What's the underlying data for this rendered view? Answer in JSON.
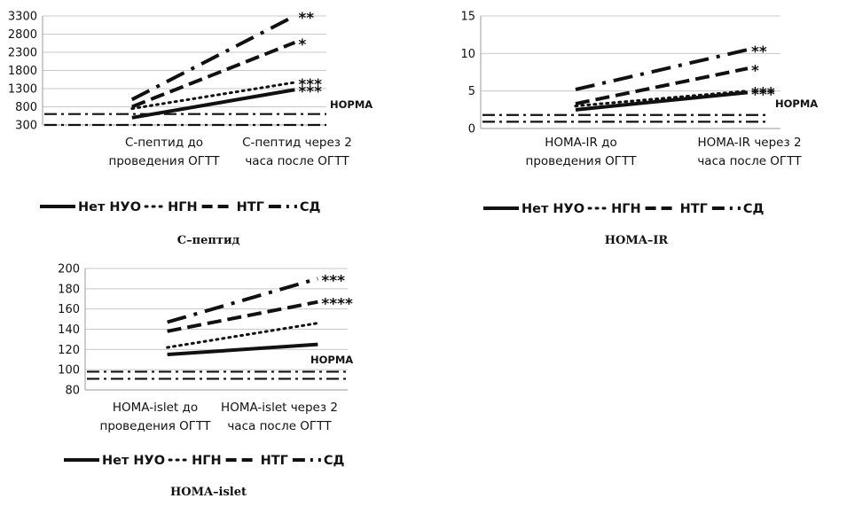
{
  "chart_data": [
    {
      "type": "line",
      "caption": "С–пептид",
      "categories": [
        "С-пептид до проведения ОГТТ",
        "С-пептид через 2 часа после ОГТТ"
      ],
      "category_lines": [
        [
          "С-пептид до",
          "проведения ОГТТ"
        ],
        [
          "С-пептид через 2",
          "часа после ОГТТ"
        ]
      ],
      "ylim": [
        300,
        3300
      ],
      "yticks": [
        300,
        800,
        1300,
        1800,
        2300,
        2800,
        3300
      ],
      "series": [
        {
          "name": "Нет НУО",
          "values": [
            500,
            1270
          ],
          "style": "solid",
          "marker": "***"
        },
        {
          "name": "НГН",
          "values": [
            750,
            1470
          ],
          "style": "dotted",
          "marker": "***"
        },
        {
          "name": "НТГ",
          "values": [
            800,
            2570
          ],
          "style": "dashed",
          "marker": "*"
        },
        {
          "name": "СД",
          "values": [
            1000,
            3300
          ],
          "style": "dashdot",
          "marker": "**"
        }
      ],
      "norm": {
        "label": "НОРМА",
        "lines": [
          600,
          300
        ]
      },
      "legend": [
        "Нет НУО",
        "НГН",
        "НТГ",
        "СД"
      ]
    },
    {
      "type": "line",
      "caption": "HOMA–IR",
      "categories": [
        "HOMA-IR до проведения ОГТТ",
        "HOMA-IR через 2 часа после ОГТТ"
      ],
      "category_lines": [
        [
          "HOMA-IR до",
          "проведения ОГТТ"
        ],
        [
          "HOMA-IR  через 2",
          "часа после ОГТТ"
        ]
      ],
      "ylim": [
        0,
        15
      ],
      "yticks": [
        0,
        5,
        10,
        15
      ],
      "series": [
        {
          "name": "Нет НУО",
          "values": [
            2.5,
            4.8
          ],
          "style": "solid",
          "marker": "***"
        },
        {
          "name": "НГН",
          "values": [
            3.0,
            5.0
          ],
          "style": "dotted",
          "marker": "***"
        },
        {
          "name": "НТГ",
          "values": [
            3.3,
            8.0
          ],
          "style": "dashed",
          "marker": "*"
        },
        {
          "name": "СД",
          "values": [
            5.2,
            10.5
          ],
          "style": "dashdot",
          "marker": "**"
        }
      ],
      "norm": {
        "label": "НОРМА",
        "lines": [
          1.8,
          0.9
        ]
      },
      "legend": [
        "Нет НУО",
        "НГН",
        "НТГ",
        "СД"
      ]
    },
    {
      "type": "line",
      "caption": "HOMA–islet",
      "categories": [
        "HOMA-islet до проведения ОГТТ",
        "HOMA-islet через 2 часа после ОГТТ"
      ],
      "category_lines": [
        [
          "HOMA-islet до",
          "проведения ОГТТ"
        ],
        [
          "HOMA-islet через 2",
          "часа после ОГТТ"
        ]
      ],
      "ylim": [
        80,
        200
      ],
      "yticks": [
        80,
        100,
        120,
        140,
        160,
        180,
        200
      ],
      "series": [
        {
          "name": "Нет НУО",
          "values": [
            115,
            125
          ],
          "style": "solid",
          "marker": ""
        },
        {
          "name": "НГН",
          "values": [
            122,
            146
          ],
          "style": "dotted",
          "marker": ""
        },
        {
          "name": "НТГ",
          "values": [
            138,
            167
          ],
          "style": "dashed",
          "marker": "****"
        },
        {
          "name": "СД",
          "values": [
            147,
            190
          ],
          "style": "dashdot",
          "marker": "***"
        }
      ],
      "norm": {
        "label": "НОРМА",
        "lines": [
          98,
          91
        ]
      },
      "legend": [
        "Нет НУО",
        "НГН",
        "НТГ",
        "СД"
      ]
    }
  ]
}
